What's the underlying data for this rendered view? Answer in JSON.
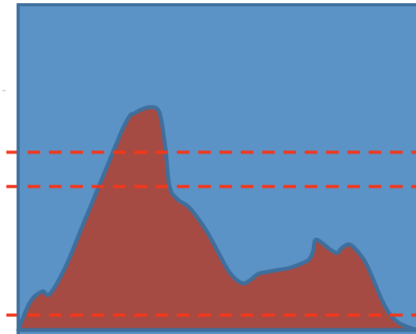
{
  "chart_data": {
    "type": "area",
    "xlim": [
      0,
      100
    ],
    "ylim": [
      0,
      100
    ],
    "grid": false,
    "legend": "none",
    "series": [
      {
        "x": [
          0,
          3,
          6,
          8,
          12,
          16,
          20,
          24,
          26,
          28,
          29,
          31,
          33,
          35,
          36,
          37,
          38,
          40,
          43,
          47,
          50,
          53,
          56,
          58,
          60,
          62,
          65,
          68,
          71,
          73,
          74,
          74.5,
          76,
          78,
          80,
          81,
          83,
          85,
          87,
          89,
          91,
          93,
          95,
          97,
          100
        ],
        "y": [
          0,
          13,
          18,
          17,
          30,
          48,
          66,
          84,
          93,
          100,
          101,
          103,
          104,
          103,
          97,
          84,
          67,
          61,
          57,
          47,
          37,
          27,
          22,
          23,
          26,
          27,
          28,
          29,
          31,
          33,
          37,
          42,
          41,
          38,
          36,
          38,
          40,
          37,
          32,
          24,
          15,
          8,
          4,
          2,
          0
        ]
      }
    ],
    "reference_lines": [
      83,
      67,
      7
    ],
    "colors": {
      "plot_background": "#5c93c7",
      "area_fill": "#a64b43",
      "area_stroke": "#3e6f9d",
      "frame": "#3e6f9d",
      "reference_line": "#f2371b"
    }
  }
}
